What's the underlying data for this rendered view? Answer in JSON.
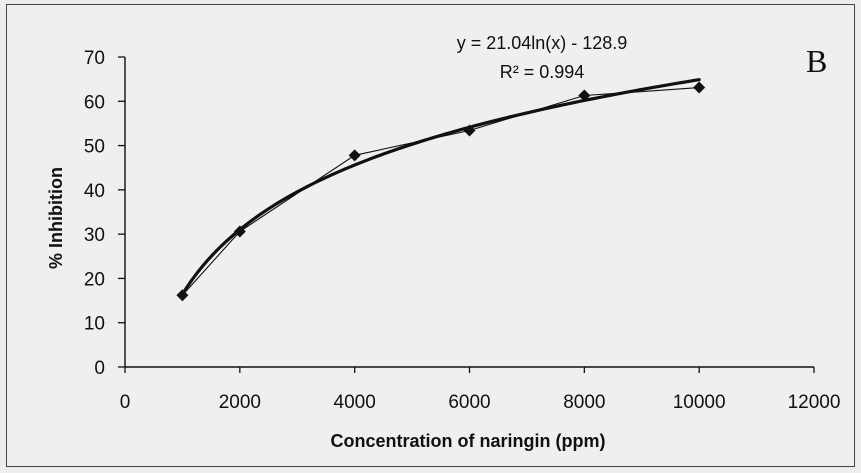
{
  "chart_data": {
    "type": "scatter",
    "xlabel": "Concentration of naringin (ppm)",
    "ylabel": "% Inhibition",
    "xlim": [
      0,
      12000
    ],
    "ylim": [
      0,
      70
    ],
    "xticks": [
      0,
      2000,
      4000,
      6000,
      8000,
      10000,
      12000
    ],
    "yticks": [
      0,
      10,
      20,
      30,
      40,
      50,
      60,
      70
    ],
    "x": [
      1000,
      2000,
      4000,
      6000,
      8000,
      10000
    ],
    "y": [
      16.2,
      30.6,
      47.8,
      53.4,
      61.3,
      63.1
    ],
    "series_line": "connected data points",
    "trendline": {
      "type": "logarithmic",
      "a": 21.04,
      "b": -128.9,
      "x_range": [
        1000,
        10000
      ]
    },
    "annotations": {
      "equation": "y = 21.04ln(x) - 128.9",
      "r_squared": "R² = 0.994",
      "panel_letter": "B"
    },
    "grid": false,
    "legend": "none",
    "colors": {
      "line": "#111111",
      "marker": "#111111",
      "background": "#efefef"
    }
  }
}
